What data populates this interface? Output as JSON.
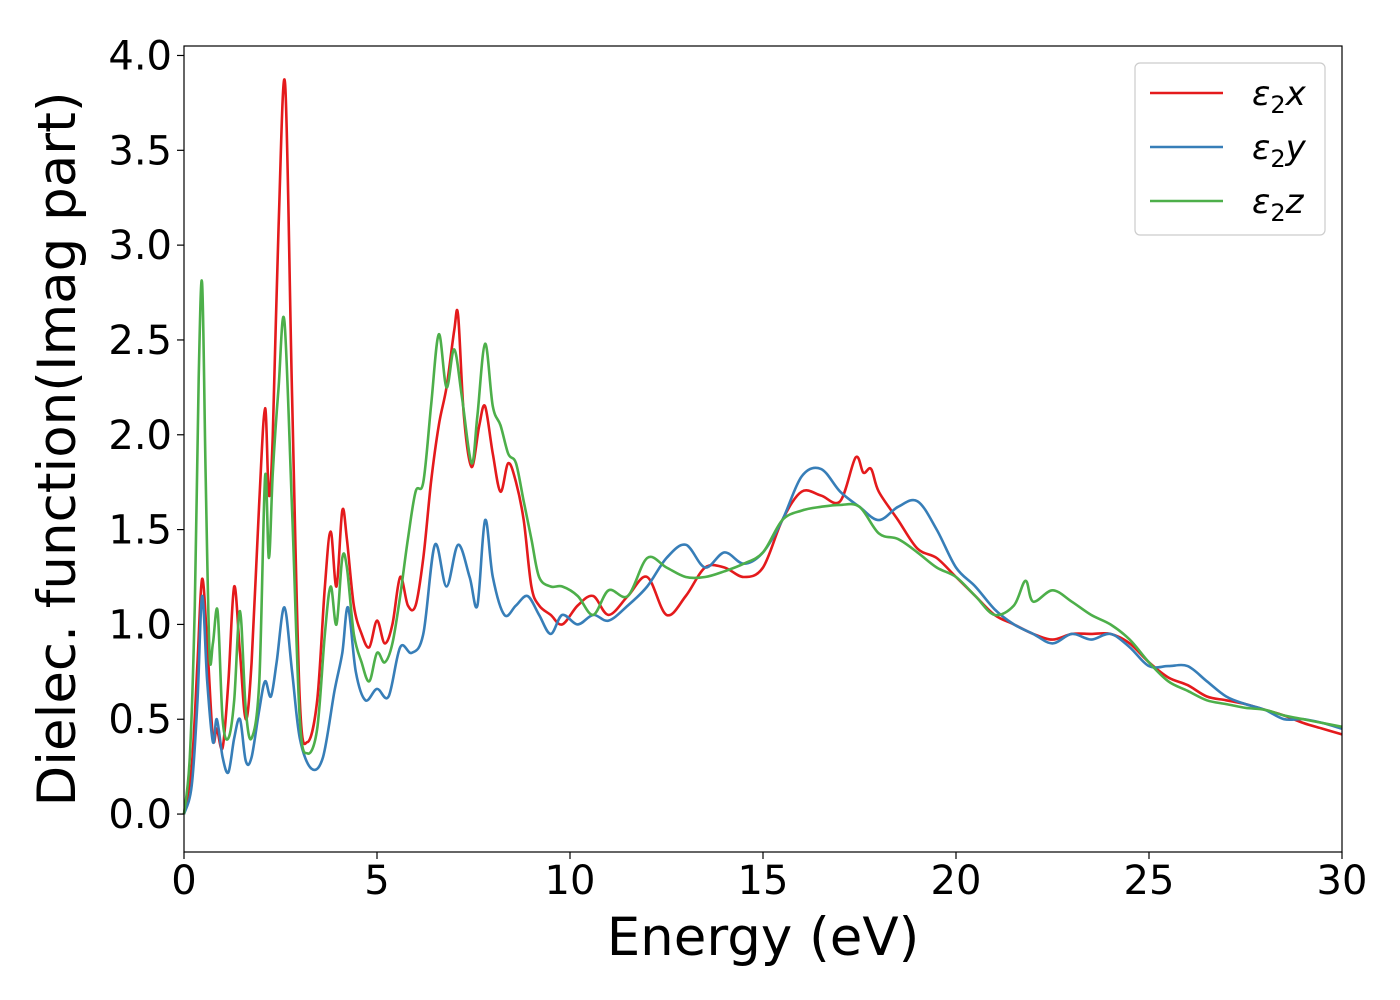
{
  "chart_data": {
    "type": "line",
    "xlabel": "Energy (eV)",
    "ylabel": "Dielec. function(Imag part)",
    "xlim": [
      0,
      30
    ],
    "ylim": [
      -0.2,
      4.05
    ],
    "xticks": [
      0,
      5,
      10,
      15,
      20,
      25,
      30
    ],
    "yticks": [
      0.0,
      0.5,
      1.0,
      1.5,
      2.0,
      2.5,
      3.0,
      3.5,
      4.0
    ],
    "xtick_labels": [
      "0",
      "5",
      "10",
      "15",
      "20",
      "25",
      "30"
    ],
    "ytick_labels": [
      "0.0",
      "0.5",
      "1.0",
      "1.5",
      "2.0",
      "2.5",
      "3.0",
      "3.5",
      "4.0"
    ],
    "grid": false,
    "legend_position": "top-right",
    "series": [
      {
        "name": "ε₂x",
        "legend": {
          "base": "ε",
          "sub": "2",
          "suffix": "x"
        },
        "color": "#e41a1c",
        "x": [
          0,
          0.2,
          0.35,
          0.47,
          0.6,
          0.75,
          0.85,
          1.0,
          1.15,
          1.3,
          1.45,
          1.6,
          1.75,
          1.95,
          2.1,
          2.2,
          2.3,
          2.45,
          2.62,
          2.8,
          3.0,
          3.2,
          3.45,
          3.65,
          3.8,
          3.95,
          4.1,
          4.22,
          4.4,
          4.6,
          4.8,
          5.0,
          5.2,
          5.4,
          5.6,
          5.8,
          6.0,
          6.2,
          6.4,
          6.6,
          6.8,
          7.0,
          7.1,
          7.25,
          7.45,
          7.65,
          7.8,
          8.0,
          8.2,
          8.4,
          8.6,
          8.8,
          9.0,
          9.2,
          9.5,
          9.8,
          10.2,
          10.6,
          11.0,
          11.5,
          12.0,
          12.5,
          13.0,
          13.5,
          14.0,
          14.5,
          15.0,
          15.5,
          16.0,
          16.5,
          17.0,
          17.4,
          17.6,
          17.8,
          18.0,
          18.5,
          19.0,
          19.5,
          20.0,
          20.5,
          21.0,
          21.5,
          22.0,
          22.5,
          23.0,
          23.5,
          24.0,
          24.5,
          25.0,
          25.5,
          26.0,
          26.5,
          27.0,
          27.5,
          28.0,
          28.5,
          29.0,
          29.5,
          30.0
        ],
        "y": [
          0.0,
          0.25,
          0.8,
          1.24,
          0.9,
          0.4,
          0.45,
          0.35,
          0.7,
          1.2,
          0.85,
          0.5,
          0.8,
          1.65,
          2.14,
          1.68,
          2.0,
          3.1,
          3.85,
          2.2,
          0.6,
          0.38,
          0.6,
          1.2,
          1.49,
          1.2,
          1.6,
          1.45,
          1.1,
          0.95,
          0.88,
          1.02,
          0.9,
          1.0,
          1.25,
          1.1,
          1.1,
          1.35,
          1.75,
          2.05,
          2.25,
          2.55,
          2.63,
          2.1,
          1.83,
          2.05,
          2.15,
          1.9,
          1.7,
          1.85,
          1.75,
          1.55,
          1.2,
          1.1,
          1.05,
          1.0,
          1.1,
          1.15,
          1.05,
          1.15,
          1.25,
          1.05,
          1.15,
          1.3,
          1.3,
          1.25,
          1.3,
          1.55,
          1.7,
          1.68,
          1.65,
          1.88,
          1.8,
          1.82,
          1.7,
          1.55,
          1.4,
          1.35,
          1.25,
          1.15,
          1.05,
          1.0,
          0.95,
          0.92,
          0.95,
          0.95,
          0.95,
          0.9,
          0.8,
          0.72,
          0.68,
          0.62,
          0.6,
          0.58,
          0.55,
          0.52,
          0.48,
          0.45,
          0.42
        ]
      },
      {
        "name": "ε₂y",
        "legend": {
          "base": "ε",
          "sub": "2",
          "suffix": "y"
        },
        "color": "#377eb8",
        "x": [
          0,
          0.2,
          0.35,
          0.47,
          0.6,
          0.75,
          0.85,
          1.0,
          1.15,
          1.3,
          1.45,
          1.6,
          1.75,
          1.95,
          2.1,
          2.25,
          2.4,
          2.6,
          2.8,
          3.0,
          3.3,
          3.6,
          3.9,
          4.1,
          4.25,
          4.45,
          4.7,
          5.0,
          5.3,
          5.6,
          5.9,
          6.2,
          6.5,
          6.8,
          7.1,
          7.4,
          7.6,
          7.8,
          8.0,
          8.3,
          8.6,
          8.9,
          9.2,
          9.5,
          9.8,
          10.2,
          10.6,
          11.0,
          11.5,
          12.0,
          12.5,
          13.0,
          13.5,
          14.0,
          14.5,
          15.0,
          15.5,
          16.0,
          16.5,
          17.0,
          17.5,
          18.0,
          18.5,
          19.0,
          19.5,
          20.0,
          20.5,
          21.0,
          21.5,
          22.0,
          22.5,
          23.0,
          23.5,
          24.0,
          24.5,
          25.0,
          25.5,
          26.0,
          26.5,
          27.0,
          27.5,
          28.0,
          28.5,
          29.0,
          29.5,
          30.0
        ],
        "y": [
          0.0,
          0.15,
          0.6,
          1.15,
          0.7,
          0.38,
          0.5,
          0.3,
          0.22,
          0.4,
          0.5,
          0.28,
          0.3,
          0.55,
          0.7,
          0.62,
          0.8,
          1.09,
          0.75,
          0.4,
          0.24,
          0.3,
          0.65,
          0.85,
          1.09,
          0.75,
          0.6,
          0.66,
          0.62,
          0.88,
          0.85,
          0.95,
          1.42,
          1.2,
          1.42,
          1.25,
          1.1,
          1.55,
          1.25,
          1.05,
          1.1,
          1.15,
          1.05,
          0.95,
          1.05,
          1.0,
          1.05,
          1.02,
          1.1,
          1.2,
          1.35,
          1.42,
          1.3,
          1.38,
          1.32,
          1.38,
          1.55,
          1.78,
          1.82,
          1.7,
          1.62,
          1.55,
          1.62,
          1.65,
          1.5,
          1.3,
          1.2,
          1.08,
          1.0,
          0.95,
          0.9,
          0.95,
          0.92,
          0.95,
          0.88,
          0.78,
          0.78,
          0.78,
          0.7,
          0.62,
          0.58,
          0.55,
          0.5,
          0.5,
          0.48,
          0.45
        ]
      },
      {
        "name": "ε₂z",
        "legend": {
          "base": "ε",
          "sub": "2",
          "suffix": "z"
        },
        "color": "#4daf4a",
        "x": [
          0,
          0.15,
          0.28,
          0.38,
          0.47,
          0.56,
          0.66,
          0.75,
          0.87,
          1.0,
          1.15,
          1.3,
          1.45,
          1.6,
          1.75,
          1.95,
          2.1,
          2.2,
          2.3,
          2.45,
          2.6,
          2.8,
          3.0,
          3.2,
          3.45,
          3.65,
          3.8,
          3.95,
          4.1,
          4.22,
          4.4,
          4.6,
          4.8,
          5.0,
          5.2,
          5.4,
          5.6,
          5.8,
          6.0,
          6.2,
          6.4,
          6.6,
          6.8,
          7.0,
          7.2,
          7.45,
          7.6,
          7.8,
          8.0,
          8.2,
          8.4,
          8.6,
          8.8,
          9.0,
          9.2,
          9.5,
          9.8,
          10.2,
          10.6,
          11.0,
          11.5,
          12.0,
          12.5,
          13.0,
          13.5,
          14.0,
          14.5,
          15.0,
          15.5,
          16.0,
          16.5,
          17.0,
          17.5,
          18.0,
          18.5,
          19.0,
          19.5,
          20.0,
          20.5,
          21.0,
          21.5,
          21.8,
          22.0,
          22.5,
          23.0,
          23.5,
          24.0,
          24.5,
          25.0,
          25.5,
          26.0,
          26.5,
          27.0,
          27.5,
          28.0,
          28.5,
          29.0,
          29.5,
          30.0
        ],
        "y": [
          0.0,
          0.3,
          1.1,
          2.3,
          2.8,
          1.8,
          0.85,
          0.9,
          1.07,
          0.5,
          0.4,
          0.6,
          1.07,
          0.55,
          0.4,
          0.7,
          1.78,
          1.35,
          1.8,
          2.25,
          2.6,
          1.6,
          0.5,
          0.32,
          0.45,
          0.95,
          1.2,
          1.0,
          1.35,
          1.3,
          0.95,
          0.8,
          0.7,
          0.85,
          0.8,
          0.9,
          1.15,
          1.45,
          1.7,
          1.75,
          2.15,
          2.53,
          2.25,
          2.45,
          2.2,
          1.85,
          2.1,
          2.48,
          2.15,
          2.05,
          1.9,
          1.85,
          1.65,
          1.45,
          1.25,
          1.2,
          1.2,
          1.15,
          1.05,
          1.18,
          1.15,
          1.35,
          1.3,
          1.25,
          1.25,
          1.28,
          1.32,
          1.38,
          1.55,
          1.6,
          1.62,
          1.63,
          1.62,
          1.48,
          1.45,
          1.38,
          1.3,
          1.25,
          1.15,
          1.05,
          1.1,
          1.23,
          1.12,
          1.18,
          1.12,
          1.05,
          1.0,
          0.92,
          0.8,
          0.7,
          0.65,
          0.6,
          0.58,
          0.56,
          0.55,
          0.52,
          0.5,
          0.48,
          0.46
        ]
      }
    ]
  }
}
